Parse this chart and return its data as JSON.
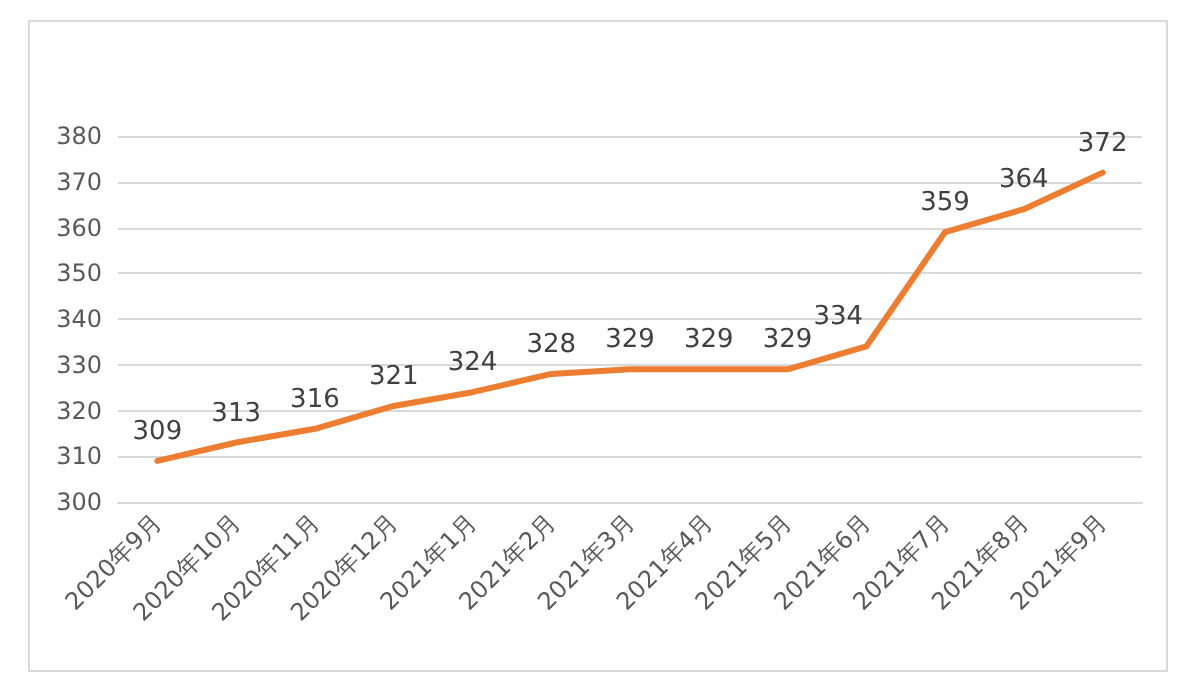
{
  "chart_data": {
    "type": "line",
    "categories": [
      "2020年9月",
      "2020年10月",
      "2020年11月",
      "2020年12月",
      "2021年1月",
      "2021年2月",
      "2021年3月",
      "2021年4月",
      "2021年5月",
      "2021年6月",
      "2021年7月",
      "2021年8月",
      "2021年9月"
    ],
    "series": [
      {
        "color": "#ed7d31",
        "values": [
          309,
          313,
          316,
          321,
          324,
          328,
          329,
          329,
          329,
          334,
          359,
          364,
          372
        ]
      }
    ],
    "ylim": [
      300,
      380
    ],
    "yticks": [
      300,
      310,
      320,
      330,
      340,
      350,
      360,
      370,
      380
    ],
    "grid": "y",
    "data_labels": true,
    "marker": "none",
    "line_style": "solid"
  }
}
